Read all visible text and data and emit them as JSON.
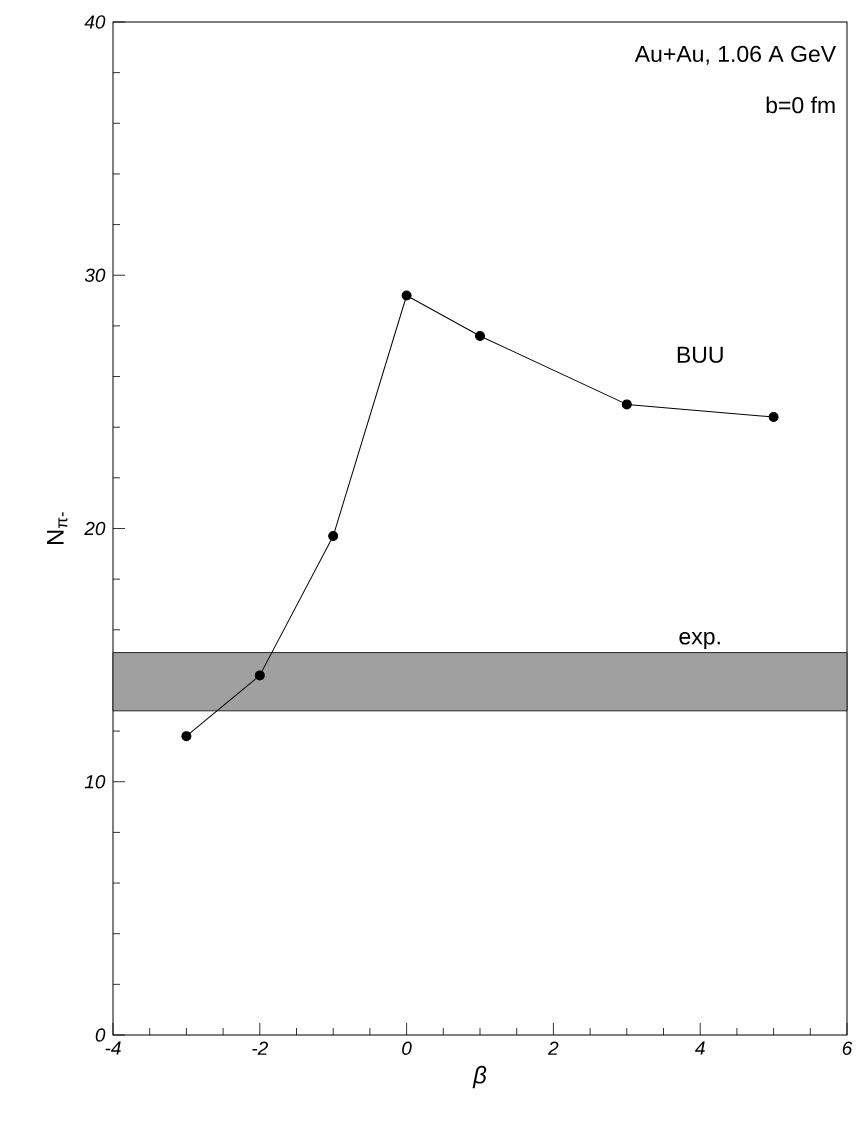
{
  "chart_data": {
    "type": "line",
    "xlabel": "*β*",
    "ylabel": "N$_{π-}$",
    "annotations": [
      "Au+Au, 1.06 A GeV",
      "b=0 fm"
    ],
    "x": [
      -3,
      -2,
      -1,
      0,
      1,
      3,
      5
    ],
    "series": [
      {
        "name": "BUU",
        "color": "#000000",
        "values": [
          11.8,
          14.2,
          19.7,
          29.2,
          27.6,
          24.9,
          24.4
        ]
      }
    ],
    "bands": [
      {
        "axis": "y",
        "from": 12.8,
        "to": 15.1,
        "label": "exp.",
        "color": "#a0a0a0"
      }
    ],
    "marker": "circle",
    "line_style": "solid",
    "xlim": [
      -4,
      6
    ],
    "ylim": [
      0,
      40
    ],
    "xticks": [
      -4,
      -2,
      0,
      2,
      4,
      6
    ],
    "yticks": [
      0,
      10,
      20,
      30,
      40
    ]
  }
}
